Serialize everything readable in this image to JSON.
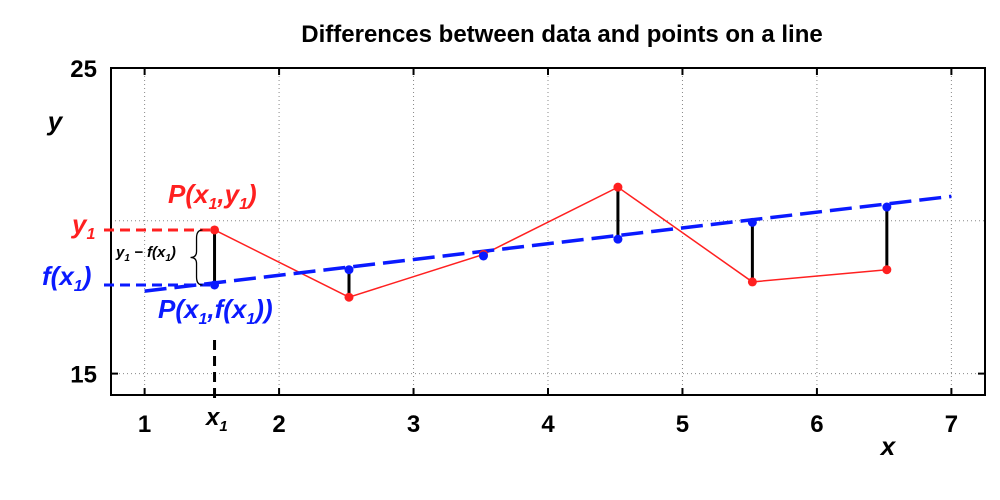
{
  "chart_data": {
    "type": "line",
    "title": "Differences between data and points on a line",
    "xlabel": "x",
    "ylabel": "y",
    "xlim": [
      0.75,
      7.25
    ],
    "ylim": [
      14.3,
      25
    ],
    "grid": true,
    "x_ticks": [
      1,
      2,
      3,
      4,
      5,
      6,
      7
    ],
    "x_tick_labels": [
      "1",
      "2",
      "3",
      "4",
      "5",
      "6",
      "7"
    ],
    "y_ticks": [
      15,
      25
    ],
    "y_tick_labels": [
      "15",
      "25"
    ],
    "y_gridlines": [
      15,
      20
    ],
    "series": [
      {
        "role": "data",
        "color": "#ff2020",
        "x": [
          1.52,
          2.52,
          3.52,
          4.52,
          5.52,
          6.52
        ],
        "y": [
          19.7,
          17.5,
          18.9,
          21.1,
          18.0,
          18.4
        ]
      },
      {
        "role": "fitted line",
        "color": "#0a1aff",
        "style": "dashed",
        "line_x": [
          1.0,
          7.0
        ],
        "line_y": [
          17.7,
          20.8
        ],
        "points_x": [
          1.52,
          2.52,
          3.52,
          4.52,
          5.52,
          6.52
        ],
        "points_y": [
          17.9,
          18.4,
          18.85,
          19.4,
          19.95,
          20.45
        ]
      }
    ],
    "annotations": {
      "x1_label": "x",
      "x1_sub": "1",
      "y1_label": "y",
      "y1_sub": "1",
      "fx1_label": "f(x",
      "fx1_sub": "1",
      "fx1_close": ")",
      "point_data_label": "P(x",
      "point_data_sub": "1",
      "point_data_mid": ",y",
      "point_data_sub2": "1",
      "point_data_close": ")",
      "point_line_label": "P(x",
      "point_line_sub": "1",
      "point_line_mid": ",f(x",
      "point_line_sub2": "1",
      "point_line_close": "))",
      "diff_label_a": "y",
      "diff_sub_a": "1",
      "diff_label_b": " − f(x",
      "diff_sub_b": "1",
      "diff_label_c": ")"
    }
  }
}
